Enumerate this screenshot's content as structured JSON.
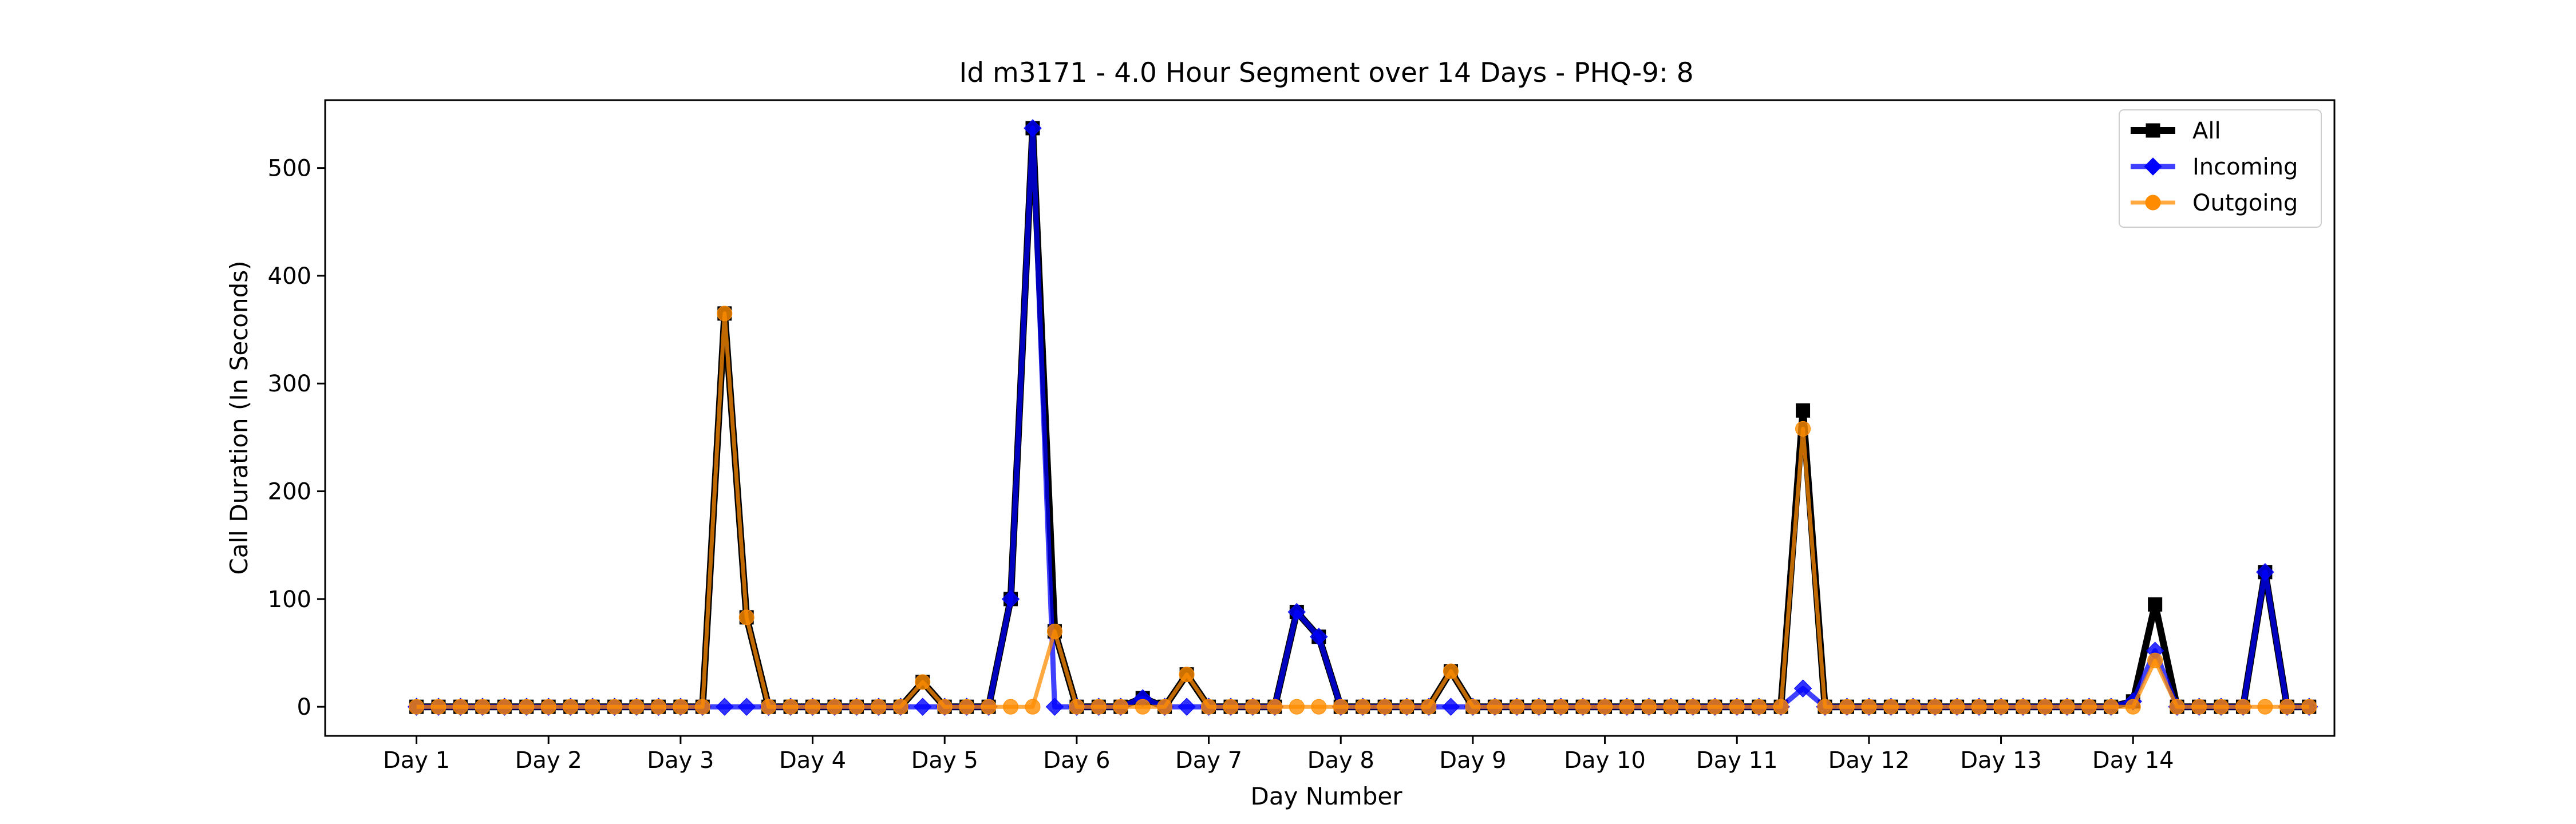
{
  "chart_data": {
    "type": "line",
    "title": "Id m3171 - 4.0 Hour Segment over 14 Days - PHQ-9: 8",
    "xlabel": "Day Number",
    "ylabel": "Call Duration (In Seconds)",
    "xlim": [
      -4.15,
      87.15
    ],
    "ylim": [
      -27,
      563
    ],
    "yticks": [
      0,
      100,
      200,
      300,
      400,
      500
    ],
    "xticks": [
      {
        "pos": 0,
        "label": "Day 1"
      },
      {
        "pos": 6,
        "label": "Day 2"
      },
      {
        "pos": 12,
        "label": "Day 3"
      },
      {
        "pos": 18,
        "label": "Day 4"
      },
      {
        "pos": 24,
        "label": "Day 5"
      },
      {
        "pos": 30,
        "label": "Day 6"
      },
      {
        "pos": 36,
        "label": "Day 7"
      },
      {
        "pos": 42,
        "label": "Day 8"
      },
      {
        "pos": 48,
        "label": "Day 9"
      },
      {
        "pos": 54,
        "label": "Day 10"
      },
      {
        "pos": 60,
        "label": "Day 11"
      },
      {
        "pos": 66,
        "label": "Day 12"
      },
      {
        "pos": 72,
        "label": "Day 13"
      },
      {
        "pos": 78,
        "label": "Day 14"
      }
    ],
    "legend_position": "top-right",
    "grid": false,
    "series": [
      {
        "name": "All",
        "color": "#000000",
        "marker": "square",
        "values": [
          0,
          0,
          0,
          0,
          0,
          0,
          0,
          0,
          0,
          0,
          0,
          0,
          0,
          0,
          365,
          83,
          0,
          0,
          0,
          0,
          0,
          0,
          0,
          23,
          0,
          0,
          0,
          100,
          537,
          70,
          0,
          0,
          0,
          8,
          0,
          30,
          0,
          0,
          0,
          0,
          88,
          65,
          0,
          0,
          0,
          0,
          0,
          33,
          0,
          0,
          0,
          0,
          0,
          0,
          0,
          0,
          0,
          0,
          0,
          0,
          0,
          0,
          0,
          275,
          0,
          0,
          0,
          0,
          0,
          0,
          0,
          0,
          0,
          0,
          0,
          0,
          0,
          0,
          5,
          95,
          0,
          0,
          0,
          0,
          125,
          0,
          0
        ]
      },
      {
        "name": "Incoming",
        "color": "#0000ff",
        "marker": "diamond",
        "values": [
          0,
          0,
          0,
          0,
          0,
          0,
          0,
          0,
          0,
          0,
          0,
          0,
          0,
          0,
          0,
          0,
          0,
          0,
          0,
          0,
          0,
          0,
          0,
          0,
          0,
          0,
          0,
          100,
          537,
          0,
          0,
          0,
          0,
          8,
          0,
          0,
          0,
          0,
          0,
          0,
          88,
          65,
          0,
          0,
          0,
          0,
          0,
          0,
          0,
          0,
          0,
          0,
          0,
          0,
          0,
          0,
          0,
          0,
          0,
          0,
          0,
          0,
          0,
          17,
          0,
          0,
          0,
          0,
          0,
          0,
          0,
          0,
          0,
          0,
          0,
          0,
          0,
          0,
          5,
          52,
          0,
          0,
          0,
          0,
          125,
          0,
          0
        ]
      },
      {
        "name": "Outgoing",
        "color": "#ff8c00",
        "marker": "circle",
        "values": [
          0,
          0,
          0,
          0,
          0,
          0,
          0,
          0,
          0,
          0,
          0,
          0,
          0,
          0,
          365,
          83,
          0,
          0,
          0,
          0,
          0,
          0,
          0,
          23,
          0,
          0,
          0,
          0,
          0,
          70,
          0,
          0,
          0,
          0,
          0,
          30,
          0,
          0,
          0,
          0,
          0,
          0,
          0,
          0,
          0,
          0,
          0,
          33,
          0,
          0,
          0,
          0,
          0,
          0,
          0,
          0,
          0,
          0,
          0,
          0,
          0,
          0,
          0,
          258,
          0,
          0,
          0,
          0,
          0,
          0,
          0,
          0,
          0,
          0,
          0,
          0,
          0,
          0,
          0,
          43,
          0,
          0,
          0,
          0,
          0,
          0,
          0
        ]
      }
    ]
  }
}
